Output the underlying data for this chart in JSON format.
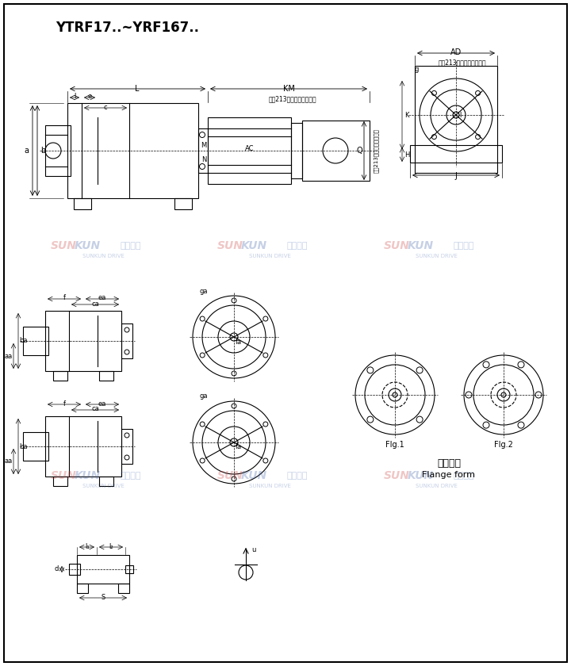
{
  "title": "YTRF17..~YRF167..",
  "background_color": "#ffffff",
  "line_color": "#000000",
  "fig_width": 7.2,
  "fig_height": 8.4,
  "flange_labels": [
    "法兰型式",
    "Flange form"
  ],
  "fig_labels": [
    "FIg.1",
    "FIg.2"
  ]
}
